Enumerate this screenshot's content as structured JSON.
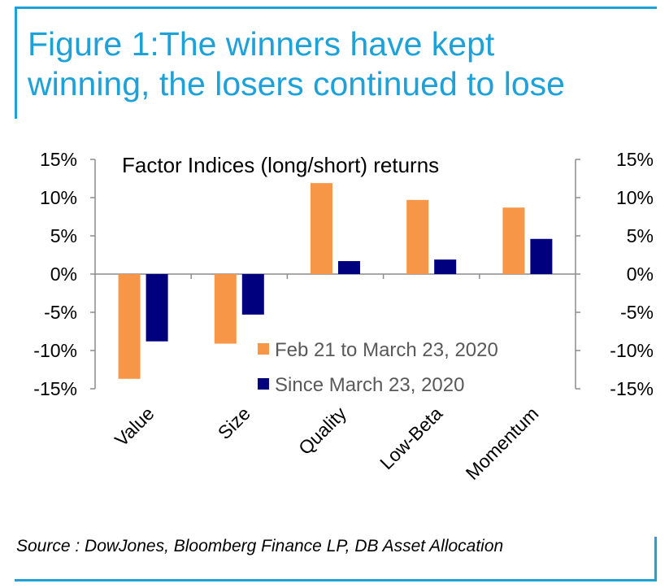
{
  "title": {
    "line1": "Figure 1:The winners have kept",
    "line2": "winning, the losers continued to lose"
  },
  "source": "Source : DowJones, Bloomberg Finance LP, DB Asset Allocation",
  "colors": {
    "accent": "#1da1d9",
    "series1": "#f79646",
    "series2": "#00007f",
    "axis": "#8c8c8c"
  },
  "chart_data": {
    "type": "bar",
    "title": "Factor Indices (long/short) returns",
    "categories": [
      "Value",
      "Size",
      "Quality",
      "Low-Beta",
      "Momentum"
    ],
    "series": [
      {
        "name": "Feb 21 to March 23, 2020",
        "values": [
          -13.7,
          -9.1,
          11.9,
          9.7,
          8.7
        ]
      },
      {
        "name": "Since March 23, 2020",
        "values": [
          -8.8,
          -5.3,
          1.7,
          1.9,
          4.6
        ]
      }
    ],
    "ylim": [
      -15,
      15
    ],
    "yticks": [
      15,
      10,
      5,
      0,
      -5,
      -10,
      -15
    ],
    "ytick_labels": [
      "15%",
      "10%",
      "5%",
      "0%",
      "-5%",
      "-10%",
      "-15%"
    ],
    "xlabel": "",
    "ylabel": "",
    "legend_position": "bottom-right",
    "grid": false
  }
}
